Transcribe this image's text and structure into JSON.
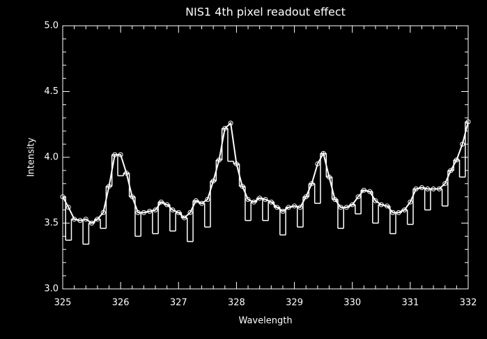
{
  "chart_data": {
    "type": "line",
    "title": "NIS1 4th pixel readout effect",
    "x_label": "Wavelength",
    "y_label": "Intensity",
    "x": [
      325.0,
      325.1,
      325.2,
      325.3,
      325.4,
      325.5,
      325.6,
      325.7,
      325.8,
      325.9,
      326.0,
      326.1,
      326.2,
      326.3,
      326.4,
      326.5,
      326.6,
      326.7,
      326.8,
      326.9,
      327.0,
      327.1,
      327.2,
      327.3,
      327.4,
      327.5,
      327.6,
      327.7,
      327.8,
      327.9,
      328.0,
      328.1,
      328.2,
      328.3,
      328.4,
      328.5,
      328.6,
      328.7,
      328.8,
      328.9,
      329.0,
      329.1,
      329.2,
      329.3,
      329.4,
      329.5,
      329.6,
      329.7,
      329.8,
      329.9,
      330.0,
      330.1,
      330.2,
      330.3,
      330.4,
      330.5,
      330.6,
      330.7,
      330.8,
      330.9,
      331.0,
      331.1,
      331.2,
      331.3,
      331.4,
      331.5,
      331.6,
      331.7,
      331.8,
      331.9,
      332.0
    ],
    "series": [
      {
        "color": "#ffffff",
        "style": "steps",
        "values": [
          3.7,
          3.37,
          3.53,
          3.52,
          3.34,
          3.5,
          3.53,
          3.46,
          3.78,
          4.02,
          3.86,
          3.88,
          3.7,
          3.4,
          3.58,
          3.59,
          3.42,
          3.66,
          3.64,
          3.44,
          3.58,
          3.54,
          3.36,
          3.67,
          3.65,
          3.47,
          3.82,
          3.98,
          4.22,
          3.97,
          3.95,
          3.78,
          3.52,
          3.66,
          3.69,
          3.52,
          3.66,
          3.62,
          3.41,
          3.62,
          3.63,
          3.47,
          3.7,
          3.8,
          3.65,
          4.03,
          3.85,
          3.68,
          3.46,
          3.62,
          3.64,
          3.57,
          3.75,
          3.74,
          3.5,
          3.64,
          3.63,
          3.42,
          3.58,
          3.6,
          3.49,
          3.76,
          3.77,
          3.6,
          3.76,
          3.76,
          3.63,
          3.9,
          3.98,
          3.85,
          4.27
        ]
      },
      {
        "color": "#ffffff",
        "style": "line-circles",
        "values": [
          3.7,
          3.62,
          3.53,
          3.52,
          3.53,
          3.5,
          3.53,
          3.58,
          3.78,
          4.02,
          4.02,
          3.88,
          3.7,
          3.58,
          3.58,
          3.59,
          3.6,
          3.66,
          3.64,
          3.6,
          3.58,
          3.54,
          3.58,
          3.67,
          3.65,
          3.68,
          3.82,
          3.98,
          4.22,
          4.26,
          3.95,
          3.78,
          3.68,
          3.66,
          3.69,
          3.68,
          3.66,
          3.62,
          3.59,
          3.62,
          3.63,
          3.62,
          3.7,
          3.8,
          3.95,
          4.03,
          3.85,
          3.68,
          3.62,
          3.62,
          3.64,
          3.7,
          3.75,
          3.74,
          3.67,
          3.64,
          3.63,
          3.58,
          3.58,
          3.6,
          3.66,
          3.76,
          3.77,
          3.76,
          3.76,
          3.76,
          3.8,
          3.9,
          3.98,
          4.1,
          4.27
        ]
      }
    ],
    "xlim": [
      325,
      332
    ],
    "xticks": [
      325,
      326,
      327,
      328,
      329,
      330,
      331,
      332
    ],
    "ylim": [
      3,
      5
    ],
    "yticks": [
      {
        "value": 3,
        "label": "3.0"
      },
      {
        "value": 3.5,
        "label": "3.5"
      },
      {
        "value": 4,
        "label": "4.0"
      },
      {
        "value": 4.5,
        "label": "4.5"
      },
      {
        "value": 5,
        "label": "5.0"
      }
    ],
    "background": "#000000"
  }
}
